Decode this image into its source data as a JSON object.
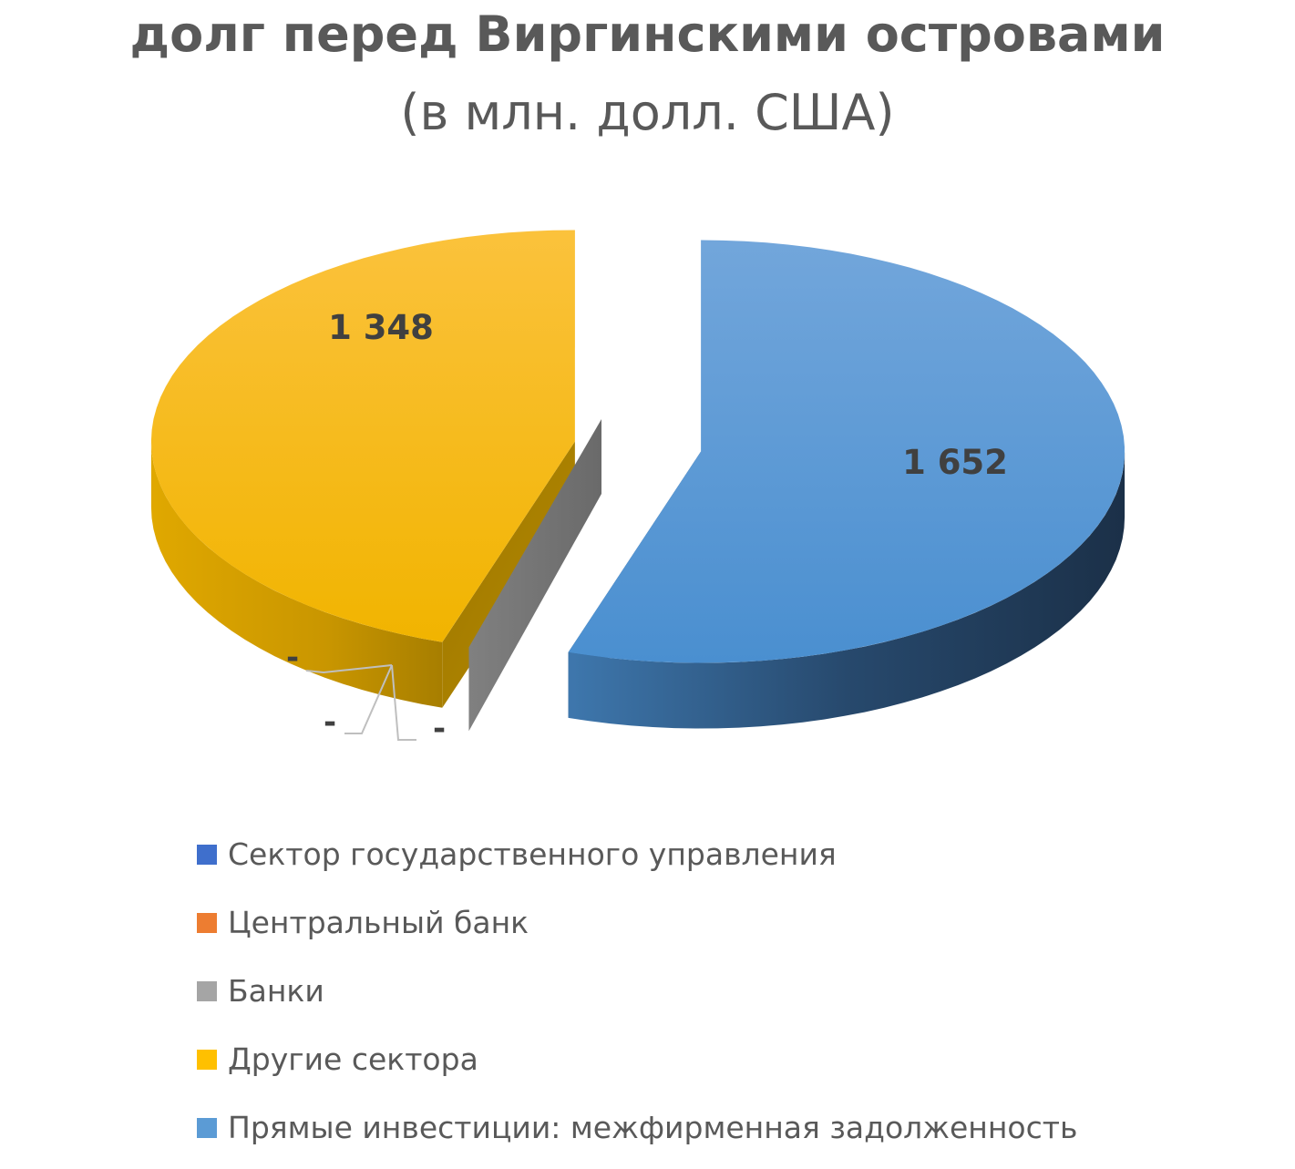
{
  "chart_data": {
    "type": "pie",
    "title": "долг перед Виргинскими островами",
    "subtitle": "(в млн. долл. США)",
    "categories": [
      "Сектор государственного управления",
      "Центральный банк",
      "Банки",
      "Другие сектора",
      "Прямые инвестиции: межфирменная задолженность"
    ],
    "values": [
      0,
      0,
      0,
      1348,
      1652
    ],
    "data_labels": [
      "-",
      "-",
      "-",
      "1 348",
      "1 652"
    ],
    "colors": [
      "#3f6fcc",
      "#ed7d31",
      "#a5a5a5",
      "#ffc000",
      "#5b9bd5"
    ],
    "legend_position": "bottom"
  }
}
